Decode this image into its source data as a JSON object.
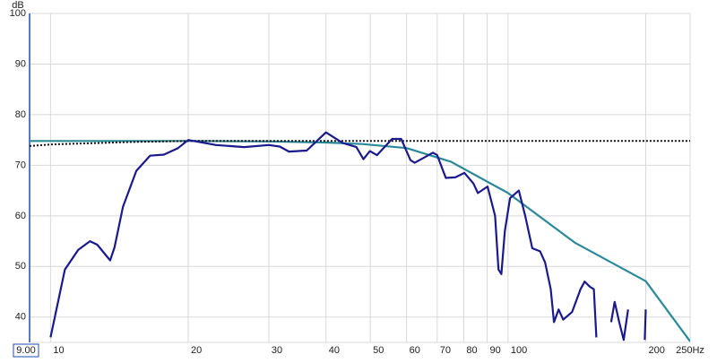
{
  "chart_data": {
    "type": "line",
    "xscale": "log",
    "y_unit": "dB",
    "xlim": [
      9,
      250
    ],
    "ylim": [
      35,
      100
    ],
    "xticks": [
      {
        "value": 9,
        "label": "9.00"
      },
      10,
      20,
      30,
      40,
      50,
      60,
      70,
      80,
      90,
      100,
      200,
      {
        "value": 250,
        "label": "250Hz"
      }
    ],
    "yticks": [
      40,
      50,
      60,
      70,
      80,
      90,
      100
    ],
    "grid": true,
    "series": [
      {
        "color": "#2a8a9a",
        "dash": "solid",
        "x": [
          9,
          20,
          30,
          40,
          48,
          60,
          75,
          100,
          140,
          200,
          250
        ],
        "values": [
          74.8,
          74.8,
          74.7,
          74.5,
          74.2,
          73.4,
          70.7,
          64.5,
          54.7,
          47.1,
          35.2
        ]
      },
      {
        "color": "#111111",
        "dash": "dotted",
        "x": [
          9,
          10,
          15,
          20,
          250
        ],
        "values": [
          73.8,
          74.1,
          74.6,
          74.8,
          74.8
        ]
      },
      {
        "color": "#1a1a8c",
        "dash": "solid",
        "x": [
          10,
          10.75,
          11.5,
          12.2,
          12.65,
          13.5,
          13.8,
          14.4,
          15.4,
          16.5,
          17.7,
          19,
          20,
          23,
          26.5,
          30,
          31.7,
          33.2,
          36.3,
          40,
          43.5,
          46.6,
          48.3,
          49.9,
          51.7,
          55.8,
          58.4,
          61.2,
          62.5,
          65.5,
          68.5,
          70,
          73.1,
          76.7,
          80.3,
          84,
          85.9,
          90.2,
          93.7,
          95.3,
          96.7,
          98.4,
          101,
          105.6,
          109,
          113,
          117.5,
          120.5,
          124,
          126,
          129,
          132,
          138,
          144,
          147,
          151,
          154,
          156,
          160,
          168,
          171,
          175,
          179,
          183,
          190,
          199,
          200
        ],
        "values": [
          36,
          49.4,
          53.3,
          55,
          54.3,
          51.2,
          53.8,
          61.8,
          68.9,
          71.9,
          72.1,
          73.4,
          75,
          74,
          73.6,
          74,
          73.7,
          72.7,
          72.9,
          76.5,
          74.4,
          73.6,
          71.2,
          72.8,
          72,
          75.2,
          75.2,
          71,
          70.5,
          71.5,
          72.5,
          72,
          67.5,
          67.6,
          68.5,
          66.4,
          64.5,
          65.8,
          60,
          49.4,
          48.5,
          57,
          63.5,
          65,
          60,
          53.6,
          53,
          50.8,
          45.5,
          39,
          41.5,
          39.5,
          41,
          45.5,
          47,
          46,
          45.5,
          36,
          null,
          39,
          43,
          39,
          35.5,
          41.5,
          null,
          35.5,
          41.5
        ]
      }
    ]
  }
}
